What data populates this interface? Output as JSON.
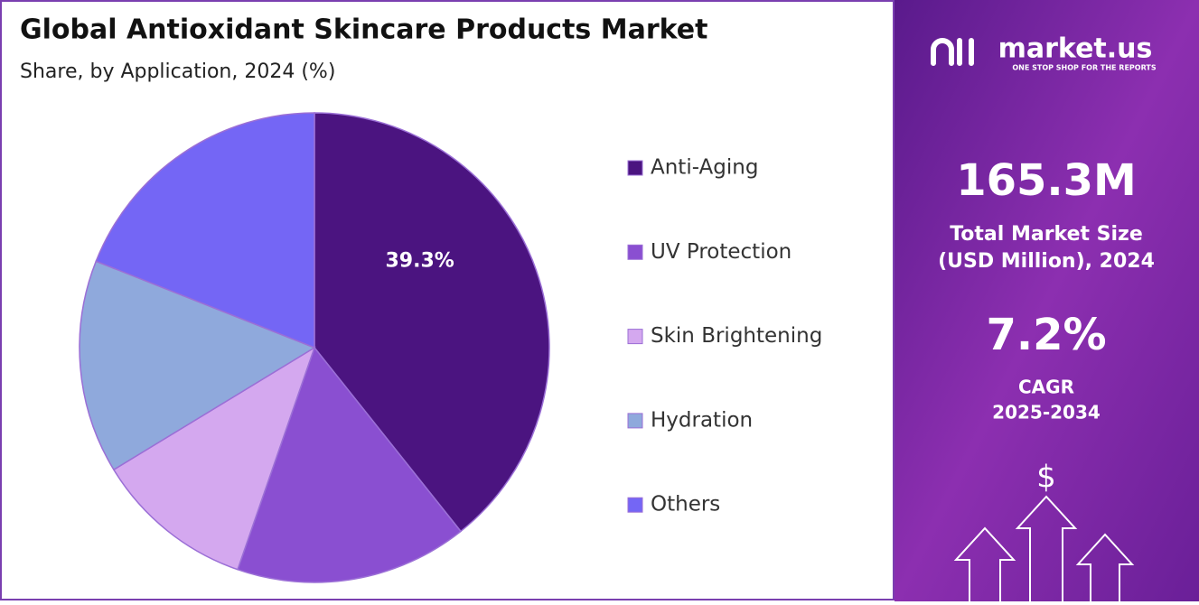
{
  "chart_data": {
    "type": "pie",
    "title": "Global Antioxidant Skincare Products Market",
    "subtitle": "Share, by Application, 2024 (%)",
    "categories": [
      "Anti-Aging",
      "UV Protection",
      "Skin Brightening",
      "Hydration",
      "Others"
    ],
    "values": [
      39.3,
      16.0,
      11.0,
      14.7,
      19.0
    ],
    "value_labels": [
      "39.3%",
      null,
      null,
      null,
      null
    ],
    "colors": [
      "#4b1480",
      "#8a4fd1",
      "#d4a8ef",
      "#8fa9dc",
      "#7466f5"
    ],
    "legend": "right"
  },
  "panel": {
    "brand": "market.us",
    "tagline": "ONE STOP SHOP FOR THE REPORTS",
    "market_size": "165.3M",
    "market_size_label": "Total Market Size",
    "market_size_unit": "(USD Million), 2024",
    "cagr": "7.2%",
    "cagr_label": "CAGR",
    "cagr_period": "2025-2034",
    "icon": "$"
  }
}
